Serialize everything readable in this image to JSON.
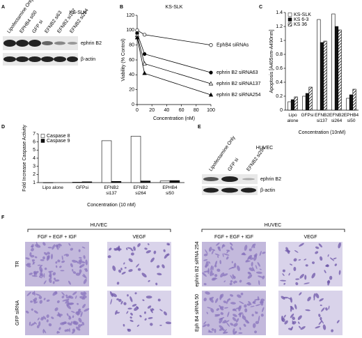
{
  "panel_labels": [
    "A",
    "B",
    "C",
    "D",
    "E",
    "F"
  ],
  "blot_a": {
    "title": "KS-SLK",
    "lanes": [
      "Lipofectamine Only",
      "EPHB4 si50",
      "GFP si",
      "EFNB2 si63",
      "EFNB2 si137",
      "EFNB2 si254"
    ],
    "bands": [
      "ephrin B2",
      "β-actin"
    ]
  },
  "blot_e": {
    "title": "HUVEC",
    "lanes": [
      "Lipofectamine Only",
      "GFP si",
      "EFNB2 si254"
    ],
    "bands": [
      "ephrin B2",
      "β-actin"
    ]
  },
  "chart_data": [
    {
      "type": "line",
      "title": "KS-SLK",
      "x_label": "Concentration (nM)",
      "y_label": "Viability (% Control)",
      "x": [
        0,
        10,
        100
      ],
      "xlim": [
        0,
        100
      ],
      "xticks": [
        0,
        20,
        40,
        60,
        80,
        100
      ],
      "ylim": [
        0,
        120
      ],
      "yticks": [
        0,
        20,
        40,
        60,
        80,
        100,
        120
      ],
      "series": [
        {
          "name": "EphB4 siRNAs",
          "color": "#000000",
          "marker": "open-circle",
          "values": [
            100,
            94,
            80
          ]
        },
        {
          "name": "ephrin B2 siRNA63",
          "color": "#000000",
          "marker": "filled-circle",
          "values": [
            96,
            68,
            43
          ]
        },
        {
          "name": "ephrin B2 siRNA137",
          "color": "#000000",
          "marker": "open-triangle",
          "values": [
            93,
            55,
            28
          ]
        },
        {
          "name": "ephrin B2 siRNA254",
          "color": "#000000",
          "marker": "filled-triangle",
          "values": [
            90,
            42,
            13
          ]
        }
      ]
    },
    {
      "type": "bar",
      "x_label": "Concentration (10nM)",
      "y_label": "Apoptosis [A405nm-A490nm]",
      "categories": [
        "Lipo\nalone",
        "GFPsi",
        "EFNB2\nsi137",
        "EFNB2\nsi264",
        "EPHB4\nsi50"
      ],
      "ylim": [
        0,
        1.4
      ],
      "yticks": [
        0,
        0.2,
        0.4,
        0.6,
        0.8,
        1,
        1.2,
        1.4
      ],
      "series": [
        {
          "name": "KS-SLK",
          "color": "#ffffff",
          "values": [
            0.12,
            0.2,
            1.3,
            1.38,
            0.17
          ]
        },
        {
          "name": "KS 6-3",
          "color": "#111111",
          "values": [
            0.15,
            0.24,
            0.97,
            1.2,
            0.22
          ]
        },
        {
          "name": "KS 36",
          "color": "#000000",
          "pattern": "hatch",
          "values": [
            0.19,
            0.33,
            0.99,
            1.15,
            0.3
          ]
        }
      ]
    },
    {
      "type": "bar",
      "x_label": "Concentration (10 nM)",
      "y_label": "Fold Increase Caspase Activity",
      "categories": [
        "Lipo alone",
        "GFPsi",
        "EFNB2\nsi137",
        "EFNB2\nsi264",
        "EPHB4\nsi50"
      ],
      "ylim": [
        1,
        7
      ],
      "yticks": [
        1,
        2,
        3,
        4,
        5,
        6,
        7
      ],
      "series": [
        {
          "name": "Caspase 8",
          "color": "#ffffff",
          "values": [
            0.97,
            1.05,
            6.15,
            6.7,
            1.2
          ]
        },
        {
          "name": "Caspase 9",
          "color": "#111111",
          "values": [
            1.0,
            1.1,
            1.15,
            1.2,
            1.25
          ]
        }
      ]
    }
  ],
  "panel_f": {
    "left": {
      "group": "HUVEC",
      "columns": [
        "FGF + EGF + IGF",
        "VEGF"
      ],
      "rows": [
        "TR",
        "GFP siRNA"
      ]
    },
    "right": {
      "group": "HUVEC",
      "columns": [
        "FGF + EGF + IGF",
        "VEGF"
      ],
      "rows": [
        "ephrin B2 siRNA 254",
        "Eph B4 siRNA 50"
      ]
    }
  }
}
